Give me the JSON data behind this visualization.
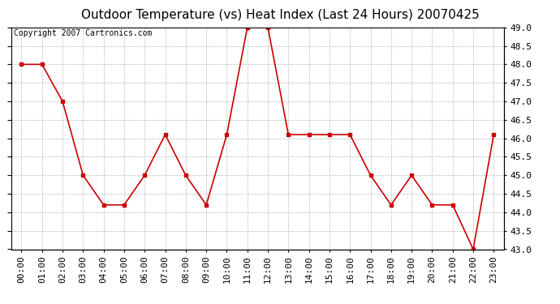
{
  "title": "Outdoor Temperature (vs) Heat Index (Last 24 Hours) 20070425",
  "copyright_text": "Copyright 2007 Cartronics.com",
  "x_labels": [
    "00:00",
    "01:00",
    "02:00",
    "03:00",
    "04:00",
    "05:00",
    "06:00",
    "07:00",
    "08:00",
    "09:00",
    "10:00",
    "11:00",
    "12:00",
    "13:00",
    "14:00",
    "15:00",
    "16:00",
    "17:00",
    "18:00",
    "19:00",
    "20:00",
    "21:00",
    "22:00",
    "23:00"
  ],
  "y_values": [
    48.0,
    48.0,
    47.0,
    45.0,
    44.2,
    44.2,
    45.0,
    46.1,
    45.0,
    44.2,
    46.1,
    49.0,
    49.0,
    46.1,
    46.1,
    46.1,
    46.1,
    45.0,
    44.2,
    45.0,
    44.2,
    44.2,
    43.0,
    46.1
  ],
  "line_color": "#cc0000",
  "marker": "s",
  "marker_size": 3,
  "background_color": "#ffffff",
  "plot_bg_color": "#ffffff",
  "grid_color": "#bbbbbb",
  "ylim": [
    43.0,
    49.0
  ],
  "ytick_step": 0.5,
  "title_fontsize": 11,
  "tick_fontsize": 8,
  "copyright_fontsize": 7
}
